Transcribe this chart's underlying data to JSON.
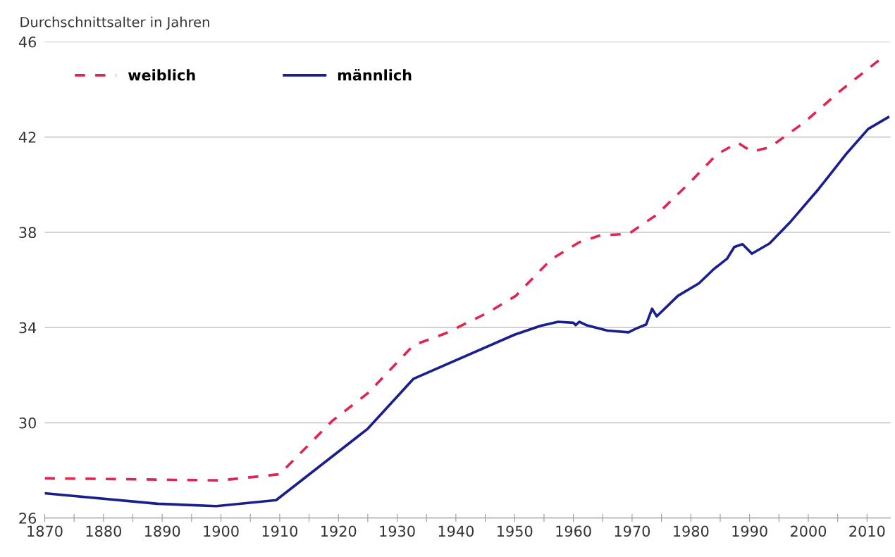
{
  "chart_data": {
    "type": "line",
    "ylabel": "Durchschnittsalter in Jahren",
    "xlim": [
      1870,
      2014
    ],
    "ylim": [
      26,
      46
    ],
    "xticks": [
      1870,
      {
        "value": 1875,
        "label": null
      },
      1880,
      {
        "value": 1885,
        "label": null
      },
      1890,
      {
        "value": 1895,
        "label": null
      },
      1900,
      {
        "value": 1905,
        "label": null
      },
      1910,
      {
        "value": 1915,
        "label": null
      },
      1920,
      {
        "value": 1925,
        "label": null
      },
      1930,
      {
        "value": 1935,
        "label": null
      },
      1940,
      {
        "value": 1945,
        "label": null
      },
      1950,
      {
        "value": 1955,
        "label": null
      },
      1960,
      {
        "value": 1965,
        "label": null
      },
      1970,
      {
        "value": 1975,
        "label": null
      },
      1980,
      {
        "value": 1985,
        "label": null
      },
      1990,
      {
        "value": 1995,
        "label": null
      },
      2000,
      {
        "value": 2005,
        "label": null
      },
      2010
    ],
    "yticks": [
      26,
      30,
      34,
      38,
      42,
      46
    ],
    "grid": "y",
    "legend": "top left",
    "series": [
      {
        "name": "weiblich",
        "color": "#e0264f",
        "line_style": "dashed",
        "x": [
          1870,
          1900,
          1910,
          1919,
          1925,
          1932.8,
          1938.2,
          1945.4,
          1950.2,
          1956.2,
          1961,
          1964.6,
          1969.4,
          1974.2,
          1980.2,
          1984.4,
          1988,
          1990.4,
          1993.4,
          1999.4,
          2005.4,
          2012
        ],
        "values": [
          27.67,
          27.58,
          27.84,
          30.09,
          31.24,
          33.26,
          33.75,
          34.62,
          35.33,
          36.86,
          37.58,
          37.87,
          37.93,
          38.74,
          40.18,
          41.27,
          41.76,
          41.39,
          41.56,
          42.63,
          43.93,
          45.22
        ]
      },
      {
        "name": "männlich",
        "color": "#1a1f8c",
        "line_style": "solid",
        "x": [
          1870,
          1889.2,
          1899.2,
          1909.4,
          1925,
          1932.8,
          1950,
          1954.4,
          1957.4,
          1960,
          1960.4,
          1961,
          1962.2,
          1965.8,
          1969.4,
          1970.6,
          1972.4,
          1973.4,
          1974.2,
          1977.8,
          1981.4,
          1983.8,
          1986.2,
          1987.4,
          1988.8,
          1990.4,
          1993.4,
          1997,
          2001.8,
          2006.6,
          2010.2,
          2013.6
        ],
        "values": [
          27.04,
          26.6,
          26.5,
          26.75,
          29.75,
          31.85,
          33.7,
          34.07,
          34.24,
          34.2,
          34.1,
          34.24,
          34.1,
          33.87,
          33.8,
          33.95,
          34.13,
          34.79,
          34.47,
          35.33,
          35.86,
          36.43,
          36.9,
          37.38,
          37.5,
          37.1,
          37.53,
          38.45,
          39.83,
          41.33,
          42.34,
          42.83
        ]
      }
    ]
  }
}
